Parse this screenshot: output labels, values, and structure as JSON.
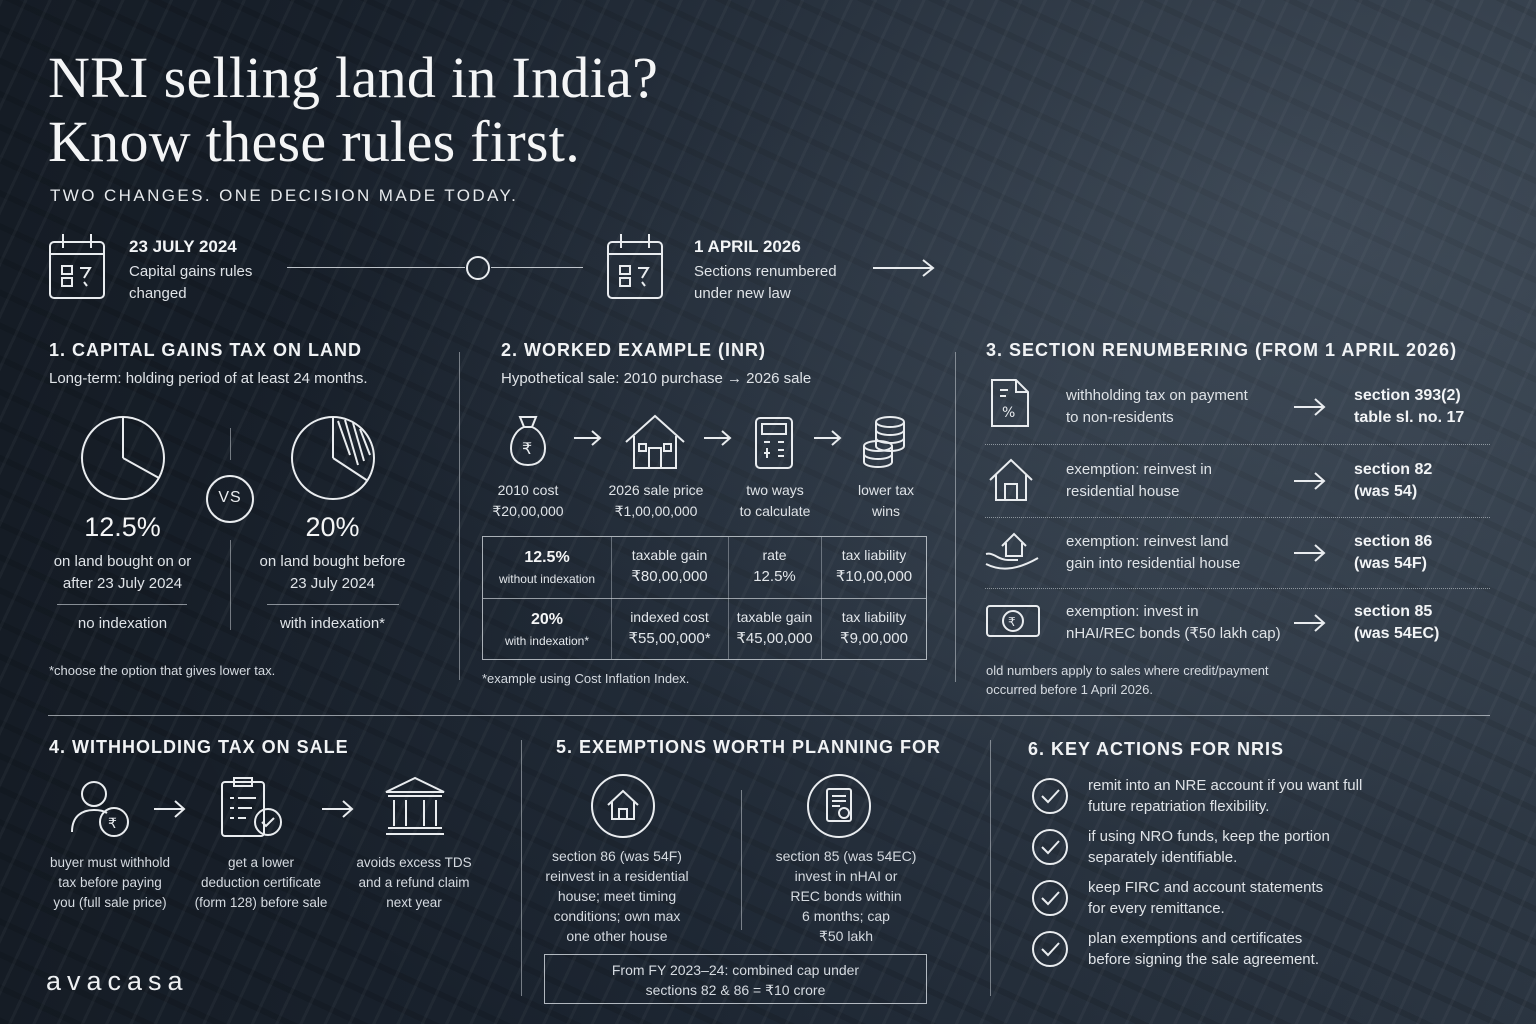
{
  "header": {
    "title_line1": "NRI selling land in India?",
    "title_line2": "Know these rules first.",
    "subtitle": "TWO CHANGES. ONE DECISION MADE TODAY."
  },
  "timeline": {
    "events": [
      {
        "date": "23 JULY 2024",
        "text_line1": "Capital gains rules",
        "text_line2": "changed",
        "icon": "calendar-icon"
      },
      {
        "date": "1 APRIL 2026",
        "text_line1": "Sections renumbered",
        "text_line2": "under new law",
        "icon": "calendar-icon"
      }
    ]
  },
  "section1": {
    "title": "1. CAPITAL GAINS TAX ON LAND",
    "intro": "Long-term: holding period of at least 24 months.",
    "vs": "VS",
    "left": {
      "rate": "12.5%",
      "line1": "on land bought on or",
      "line2": "after 23 July 2024",
      "method": "no indexation"
    },
    "right": {
      "rate": "20%",
      "line1": "on land bought before",
      "line2": "23 July 2024",
      "method": "with indexation*"
    },
    "footnote": "*choose the option that gives lower tax."
  },
  "section2": {
    "title": "2. WORKED EXAMPLE (INR)",
    "intro": "Hypothetical sale: 2010 purchase → 2026 sale",
    "steps": [
      {
        "line1": "2010 cost",
        "line2": "₹20,00,000",
        "icon": "money-bag-icon"
      },
      {
        "line1": "2026 sale price",
        "line2": "₹1,00,00,000",
        "icon": "house-icon"
      },
      {
        "line1": "two ways",
        "line2": "to calculate",
        "icon": "calculator-icon"
      },
      {
        "line1": "lower tax",
        "line2": "wins",
        "icon": "coin-stack-icon"
      }
    ],
    "table": {
      "row1": {
        "label": "12.5%",
        "sub": "without indexation",
        "c2h": "taxable gain",
        "c2v": "₹80,00,000",
        "c3h": "rate",
        "c3v": "12.5%",
        "c4h": "tax liability",
        "c4v": "₹10,00,000"
      },
      "row2": {
        "label": "20%",
        "sub": "with indexation*",
        "c2h": "indexed cost",
        "c2v": "₹55,00,000*",
        "c3h": "taxable gain",
        "c3v": "₹45,00,000",
        "c4h": "tax liability",
        "c4v": "₹9,00,000"
      }
    },
    "footnote": "*example using Cost Inflation Index."
  },
  "section3": {
    "title": "3. SECTION RENUMBERING (FROM 1 APRIL 2026)",
    "rows": [
      {
        "desc1": "withholding tax on payment",
        "desc2": "to non-residents",
        "new1": "section 393(2)",
        "new2": "table sl. no. 17",
        "icon": "tax-document-icon"
      },
      {
        "desc1": "exemption: reinvest in",
        "desc2": "residential house",
        "new1": "section 82",
        "new2": "(was 54)",
        "icon": "house-icon"
      },
      {
        "desc1": "exemption: reinvest land",
        "desc2": "gain into residential house",
        "new1": "section 86",
        "new2": "(was 54F)",
        "icon": "hand-house-icon"
      },
      {
        "desc1": "exemption: invest in",
        "desc2": "nHAI/REC bonds (₹50 lakh cap)",
        "new1": "section 85",
        "new2": "(was 54EC)",
        "icon": "rupee-note-icon"
      }
    ],
    "footnote1": "old numbers apply to sales where credit/payment",
    "footnote2": "occurred before 1 April 2026."
  },
  "section4": {
    "title": "4. WITHHOLDING TAX ON SALE",
    "steps": [
      {
        "l1": "buyer must withhold",
        "l2": "tax before paying",
        "l3": "you (full sale price)",
        "icon": "buyer-rupee-icon"
      },
      {
        "l1": "get a lower",
        "l2": "deduction certificate",
        "l3": "(form 128) before sale",
        "icon": "clipboard-check-icon"
      },
      {
        "l1": "avoids excess TDS",
        "l2": "and a refund claim",
        "l3": "next year",
        "icon": "bank-icon"
      }
    ]
  },
  "section5": {
    "title": "5. EXEMPTIONS WORTH PLANNING FOR",
    "left": {
      "l1": "section 86 (was 54F)",
      "l2": "reinvest in a residential",
      "l3": "house; meet timing",
      "l4": "conditions; own max",
      "l5": "one other house"
    },
    "right": {
      "l1": "section 85 (was 54EC)",
      "l2": "invest in nHAI or",
      "l3": "REC bonds within",
      "l4": "6 months; cap",
      "l5": "₹50 lakh"
    },
    "note1": "From FY 2023–24: combined cap under",
    "note2": "sections 82 & 86 = ₹10 crore"
  },
  "section6": {
    "title": "6. KEY ACTIONS FOR NRIS",
    "items": [
      {
        "l1": "remit into an NRE account if you want full",
        "l2": "future repatriation flexibility."
      },
      {
        "l1": "if using NRO funds, keep the portion",
        "l2": "separately identifiable."
      },
      {
        "l1": "keep FIRC and account statements",
        "l2": "for every remittance."
      },
      {
        "l1": "plan exemptions and certificates",
        "l2": "before signing the sale agreement."
      }
    ]
  },
  "brand": "avacasa"
}
